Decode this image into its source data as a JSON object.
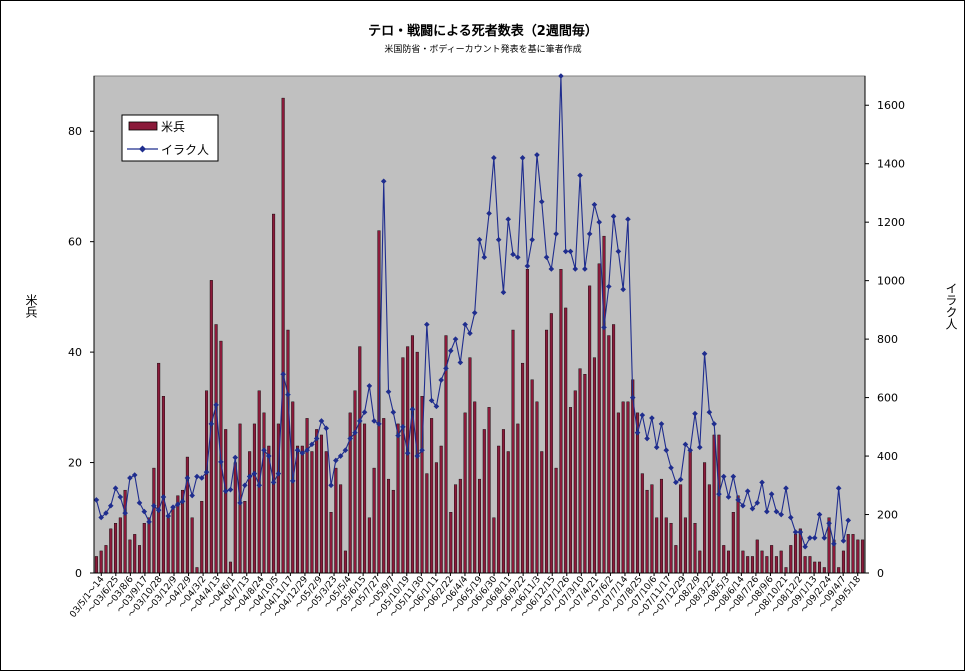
{
  "chart_data": {
    "type": "bar+line",
    "title": "テロ・戦闘による死者数表（2週間毎）",
    "subtitle": "米国防省・ボディーカウント発表を基に筆者作成",
    "ylabel_left": "米兵",
    "ylabel_right": "イラク人",
    "ylim_left": [
      0,
      90
    ],
    "ylim_right": [
      0,
      1700
    ],
    "yticks_left": [
      0,
      20,
      40,
      60,
      80
    ],
    "yticks_right": [
      0,
      200,
      400,
      600,
      800,
      1000,
      1200,
      1400,
      1600
    ],
    "legend_position": "top-left",
    "grid": false,
    "x_tick_labels": [
      "03/5/1～14",
      "～03/6/25",
      "～03/8/6",
      "～03/9/17",
      "～03/10/28",
      "～03/12/9",
      "～04/2/9",
      "～04/3/2",
      "～04/4/13",
      "～04/6/1",
      "～04/7/13",
      "～04/8/24",
      "～04/10/5",
      "～04/11/17",
      "～04/12/29",
      "～05/2/9",
      "～05/3/23",
      "～05/5/4",
      "～05/6/15",
      "～05/7/27",
      "～05/9/7",
      "～05/10/19",
      "～05/11/30",
      "～06/1/11",
      "～06/2/22",
      "～06/4/4",
      "～06/5/19",
      "～06/6/30",
      "～06/8/11",
      "～06/9/22",
      "～06/11/3",
      "～06/12/15",
      "～07/1/26",
      "～07/3/10",
      "～07/4/21",
      "～07/6/2",
      "～07/7/14",
      "～07/8/25",
      "～07/10/6",
      "～07/11/17",
      "～07/12/29",
      "～08/2/9",
      "～08/3/22",
      "～08/5/3",
      "～08/6/14",
      "～08/7/26",
      "～08/9/6",
      "～08/10/21",
      "～08/12/2",
      "～09/1/13",
      "～09/2/24",
      "～09/4/7",
      "～09/5/18"
    ],
    "series": [
      {
        "name": "米兵",
        "kind": "bar",
        "axis": "left",
        "color": "#8b1a3a",
        "values": [
          3,
          4,
          5,
          8,
          9,
          10,
          15,
          6,
          7,
          5,
          9,
          10,
          19,
          38,
          32,
          10,
          12,
          14,
          15,
          21,
          10,
          1,
          13,
          33,
          53,
          45,
          42,
          26,
          2,
          20,
          27,
          13,
          22,
          27,
          33,
          29,
          23,
          65,
          27,
          86,
          44,
          31,
          23,
          23,
          28,
          22,
          26,
          25,
          22,
          11,
          19,
          16,
          4,
          29,
          33,
          41,
          27,
          10,
          19,
          62,
          28,
          17,
          15,
          27,
          39,
          41,
          43,
          40,
          32,
          18,
          28,
          20,
          23,
          43,
          11,
          16,
          17,
          29,
          39,
          31,
          17,
          26,
          30,
          10,
          23,
          26,
          22,
          44,
          27,
          38,
          55,
          35,
          31,
          22,
          44,
          47,
          19,
          55,
          48,
          30,
          33,
          37,
          36,
          52,
          39,
          56,
          61,
          43,
          45,
          29,
          31,
          31,
          35,
          29,
          18,
          15,
          16,
          10,
          17,
          10,
          9,
          5,
          16,
          10,
          22,
          9,
          4,
          20,
          16,
          25,
          25,
          5,
          4,
          11,
          14,
          4,
          3,
          3,
          6,
          4,
          3,
          5,
          3,
          4,
          1,
          5,
          7,
          8,
          3,
          3,
          2,
          2,
          1,
          10,
          6,
          1,
          4,
          7,
          7,
          6,
          6
        ]
      },
      {
        "name": "イラク人",
        "kind": "line",
        "axis": "right",
        "color": "#1f2d8e",
        "values": [
          250,
          190,
          205,
          230,
          290,
          260,
          205,
          325,
          335,
          240,
          210,
          175,
          230,
          215,
          260,
          195,
          225,
          235,
          245,
          325,
          265,
          330,
          325,
          345,
          510,
          575,
          380,
          280,
          285,
          395,
          240,
          300,
          330,
          340,
          300,
          420,
          400,
          310,
          340,
          680,
          610,
          315,
          420,
          410,
          420,
          440,
          460,
          520,
          495,
          300,
          385,
          400,
          420,
          460,
          480,
          520,
          550,
          640,
          520,
          510,
          1340,
          620,
          550,
          470,
          500,
          410,
          560,
          400,
          420,
          850,
          590,
          570,
          660,
          700,
          760,
          800,
          720,
          850,
          820,
          890,
          1140,
          1080,
          1230,
          1420,
          1140,
          960,
          1210,
          1090,
          1080,
          1420,
          1050,
          1140,
          1430,
          1270,
          1080,
          1040,
          1160,
          1700,
          1100,
          1100,
          1040,
          1360,
          1040,
          1160,
          1260,
          1200,
          840,
          980,
          1220,
          1100,
          970,
          1210,
          600,
          480,
          540,
          460,
          530,
          430,
          510,
          420,
          360,
          310,
          320,
          440,
          420,
          545,
          430,
          750,
          550,
          510,
          270,
          330,
          260,
          330,
          250,
          230,
          280,
          220,
          240,
          310,
          210,
          270,
          210,
          200,
          290,
          190,
          140,
          140,
          90,
          120,
          120,
          200,
          120,
          170,
          100,
          290,
          110,
          180
        ]
      }
    ]
  }
}
